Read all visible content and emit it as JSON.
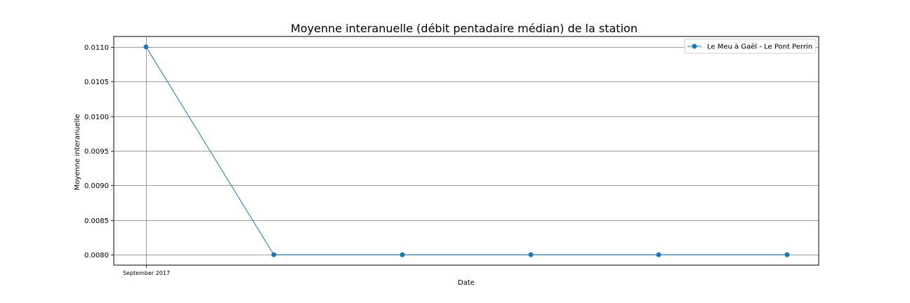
{
  "chart_data": {
    "type": "line",
    "title": "Moyenne interanuelle  (débit pentadaire médian) de la station",
    "xlabel": "Date",
    "ylabel": "Moyenne interanuelle",
    "x_tick_labels": [
      "September 2017"
    ],
    "ylim": [
      0.00785,
      0.01115
    ],
    "y_ticks": [
      0.008,
      0.0085,
      0.009,
      0.0095,
      0.01,
      0.0105,
      0.011
    ],
    "y_tick_labels": [
      "0.0080",
      "0.0085",
      "0.0090",
      "0.0095",
      "0.0100",
      "0.0105",
      "0.0110"
    ],
    "grid": true,
    "legend_position": "top-right",
    "series": [
      {
        "name": "Le Meu à Gaël - Le Pont Perrin",
        "color": "#1f77b4",
        "values": [
          0.011,
          0.008,
          0.008,
          0.008,
          0.008,
          0.008
        ]
      }
    ]
  }
}
